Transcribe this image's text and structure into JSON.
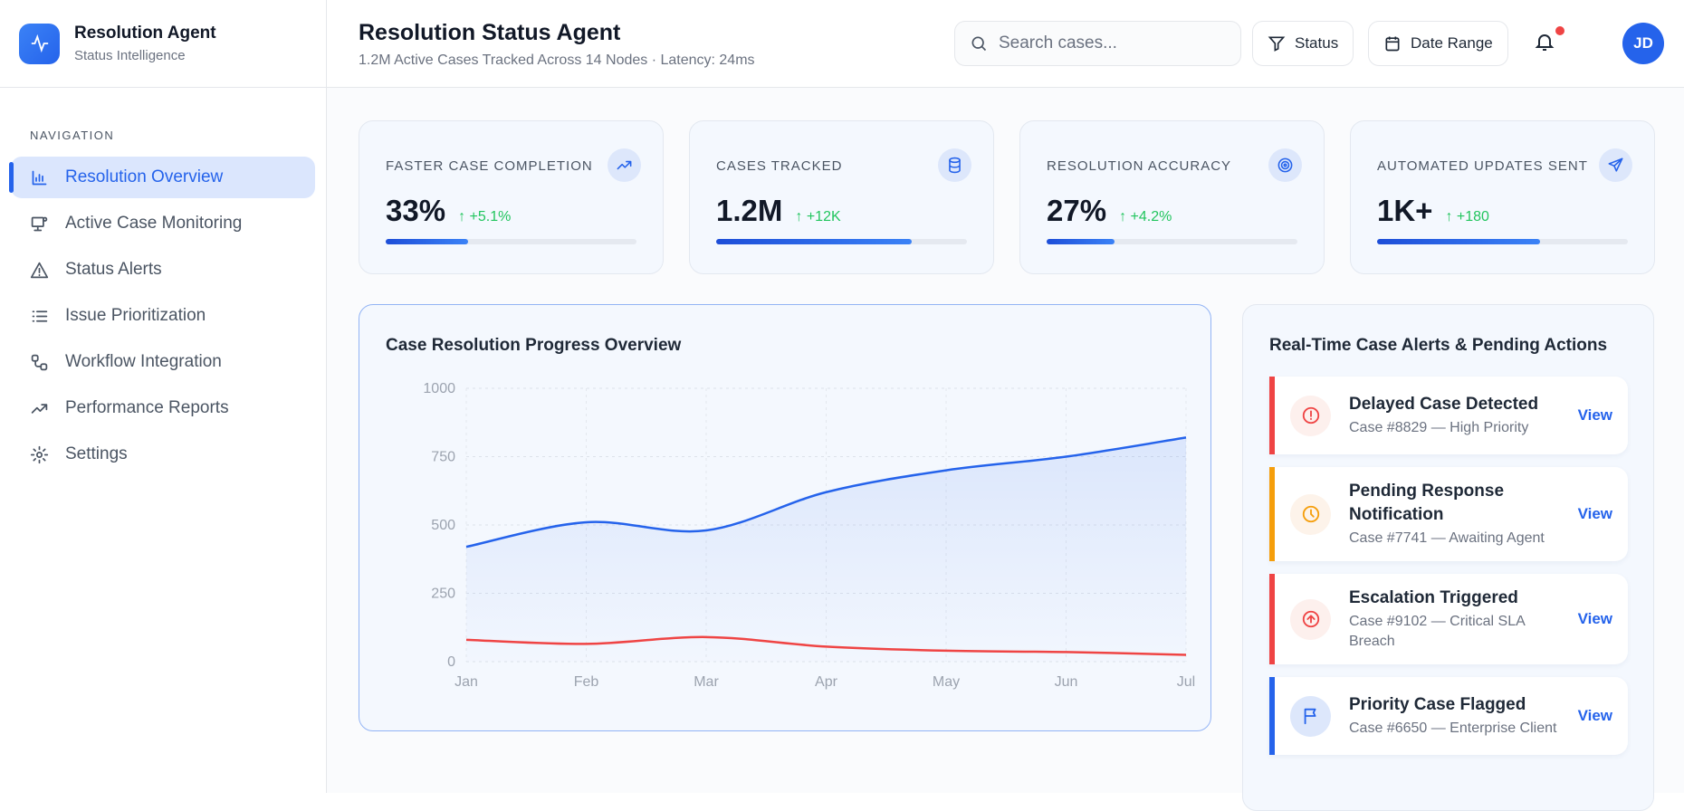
{
  "brand": {
    "title": "Resolution Agent",
    "subtitle": "Status Intelligence"
  },
  "nav": {
    "label": "NAVIGATION",
    "items": [
      {
        "label": "Resolution Overview",
        "icon": "bar-chart-icon",
        "active": true
      },
      {
        "label": "Active Case Monitoring",
        "icon": "monitor-icon"
      },
      {
        "label": "Status Alerts",
        "icon": "warning-icon"
      },
      {
        "label": "Issue Prioritization",
        "icon": "list-icon"
      },
      {
        "label": "Workflow Integration",
        "icon": "workflow-icon"
      },
      {
        "label": "Performance Reports",
        "icon": "trending-up-icon"
      },
      {
        "label": "Settings",
        "icon": "gear-icon"
      }
    ]
  },
  "header": {
    "title": "Resolution Status Agent",
    "subtitle": "1.2M Active Cases Tracked Across 14 Nodes · Latency: 24ms",
    "search_placeholder": "Search cases...",
    "status_label": "Status",
    "date_label": "Date Range",
    "avatar": "JD"
  },
  "cards": [
    {
      "label": "FASTER CASE COMPLETION",
      "value": "33%",
      "delta": "↑ +5.1%",
      "progress": 33,
      "icon": "trending-up-icon"
    },
    {
      "label": "CASES TRACKED",
      "value": "1.2M",
      "delta": "↑ +12K",
      "progress": 78,
      "icon": "database-icon"
    },
    {
      "label": "RESOLUTION ACCURACY",
      "value": "27%",
      "delta": "↑ +4.2%",
      "progress": 27,
      "icon": "target-icon"
    },
    {
      "label": "AUTOMATED UPDATES SENT",
      "value": "1K+",
      "delta": "↑ +180",
      "progress": 65,
      "icon": "send-icon"
    }
  ],
  "colors": {
    "accent": "#2563eb",
    "danger": "#ef4444",
    "warning": "#f59e0b",
    "success": "#22c55e"
  },
  "chart_data": {
    "type": "line",
    "title": "Case Resolution Progress Overview",
    "categories": [
      "Jan",
      "Feb",
      "Mar",
      "Apr",
      "May",
      "Jun",
      "Jul"
    ],
    "ylim": [
      0,
      1000
    ],
    "yticks": [
      "0",
      "250",
      "500",
      "750",
      "1000"
    ],
    "grid": true,
    "series": [
      {
        "color": "#2563eb",
        "area": true,
        "values": [
          420,
          510,
          480,
          620,
          700,
          750,
          820
        ]
      },
      {
        "color": "#ef4444",
        "values": [
          80,
          65,
          90,
          55,
          40,
          35,
          25
        ]
      }
    ]
  },
  "alerts": {
    "title": "Real-Time Case Alerts & Pending Actions",
    "items": [
      {
        "title": "Delayed Case Detected",
        "sub": "Case #8829 — High Priority",
        "view": "View",
        "color": "#ef4444",
        "icon": "alert-circle-icon"
      },
      {
        "title": "Pending Response Notification",
        "sub": "Case #7741 — Awaiting Agent",
        "view": "View",
        "color": "#f59e0b",
        "icon": "clock-icon"
      },
      {
        "title": "Escalation Triggered",
        "sub": "Case #9102 — Critical SLA Breach",
        "view": "View",
        "color": "#ef4444",
        "icon": "arrow-up-circle-icon"
      },
      {
        "title": "Priority Case Flagged",
        "sub": "Case #6650 — Enterprise Client",
        "view": "View",
        "color": "#2563eb",
        "icon": "flag-icon"
      }
    ]
  }
}
